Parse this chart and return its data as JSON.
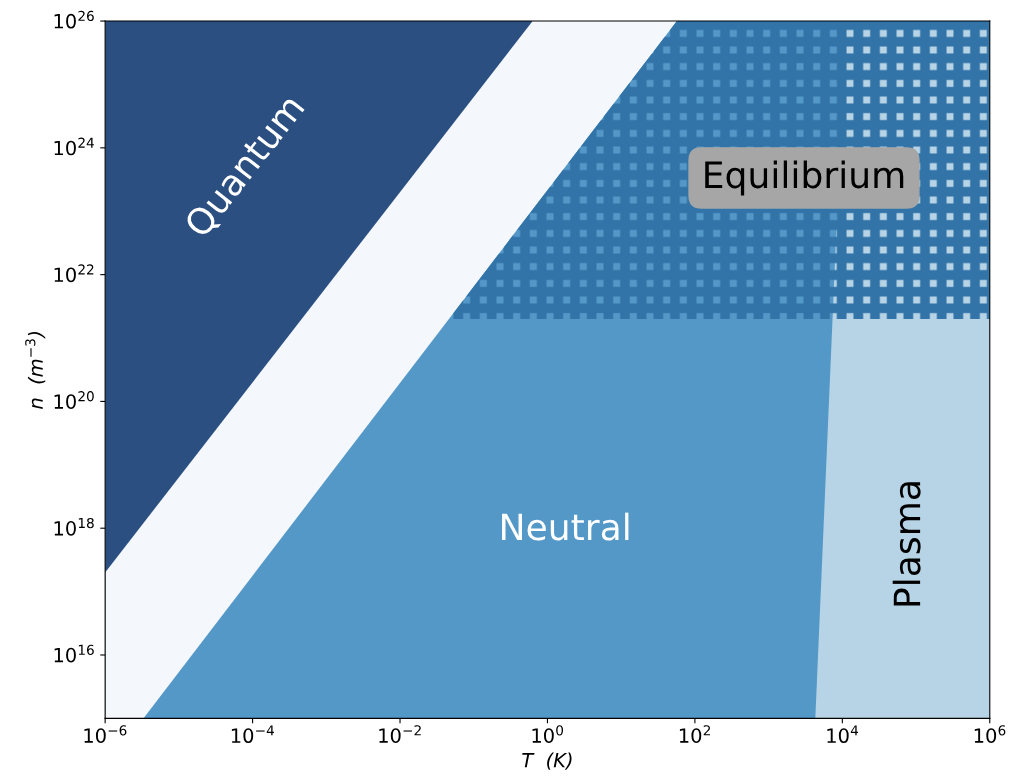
{
  "chart_data": {
    "type": "area",
    "xlabel": "T  (K)",
    "ylabel": "n  (m$^{−3}$)",
    "log": "xy",
    "legend": false,
    "grid": false,
    "xlim": [
      1e-06,
      1000000.0
    ],
    "ylim": [
      1000000000000000.0,
      1e+26
    ],
    "xticks": [
      {
        "value": 1e-06,
        "label": "10$^{−6}$"
      },
      {
        "value": 0.0001,
        "label": "10$^{−4}$"
      },
      {
        "value": 0.01,
        "label": "10$^{−2}$"
      },
      {
        "value": 1,
        "label": "10$^{0}$"
      },
      {
        "value": 100,
        "label": "10$^{2}$"
      },
      {
        "value": 10000,
        "label": "10$^{4}$"
      },
      {
        "value": 1000000.0,
        "label": "10$^{6}$"
      }
    ],
    "yticks": [
      {
        "value": 1e+16,
        "label": "10$^{16}$"
      },
      {
        "value": 1e+18,
        "label": "10$^{18}$"
      },
      {
        "value": 1e+20,
        "label": "10$^{20}$"
      },
      {
        "value": 1e+22,
        "label": "10$^{22}$"
      },
      {
        "value": 1e+24,
        "label": "10$^{24}$"
      },
      {
        "value": 1e+26,
        "label": "10$^{26}$"
      }
    ],
    "series": [
      {
        "name": "Quantum",
        "color": "#2b4f80",
        "x": [
          1e-06,
          0.63
        ],
        "values": [
          1e+26,
          1e+26
        ]
      },
      {
        "color": "#f4f8fd",
        "x": [
          1e-06,
          0.63,
          57
        ],
        "values": [
          2e+17,
          1e+26,
          1e+26
        ]
      },
      {
        "name": "Neutral",
        "color": "#5498c8",
        "x": [
          3.3e-06,
          57,
          11000
        ],
        "values": [
          1000000000000000.0,
          1e+26,
          1e+26
        ]
      },
      {
        "name": "Plasma",
        "color": "#b7d4e6",
        "x": [
          4300,
          11000,
          1000000.0
        ],
        "values": [
          1000000000000000.0,
          1e+26,
          1e+26
        ]
      }
    ],
    "bands": [
      {
        "axis": "y",
        "from": 2e+21,
        "to": 1e+26,
        "label": "Equilibrium",
        "color": "#3274a8"
      }
    ]
  }
}
